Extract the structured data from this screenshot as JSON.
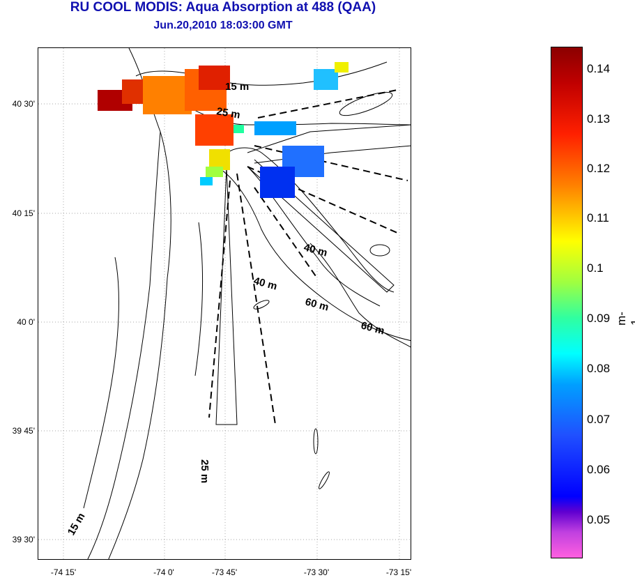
{
  "title": "RU COOL MODIS: Aqua Absorption at 488 (QAA)",
  "subtitle": "Jun.20,2010 18:03:00 GMT",
  "y_ticks": [
    "40 30'",
    "40 15'",
    "40 0'",
    "39 45'",
    "39 30'"
  ],
  "x_ticks": [
    "-74 15'",
    "-74 0'",
    "-73 45'",
    "-73 30'",
    "-73 15'"
  ],
  "contour_labels": [
    "15 m",
    "25 m",
    "40 m",
    "40 m",
    "60 m",
    "60 m",
    "25 m",
    "15 m"
  ],
  "colorbar": {
    "ticks": [
      "0.14",
      "0.13",
      "0.12",
      "0.11",
      "0.1",
      "0.09",
      "0.08",
      "0.07",
      "0.06",
      "0.05"
    ],
    "units": "m-1"
  },
  "colors": {
    "title": "#1010b0"
  }
}
